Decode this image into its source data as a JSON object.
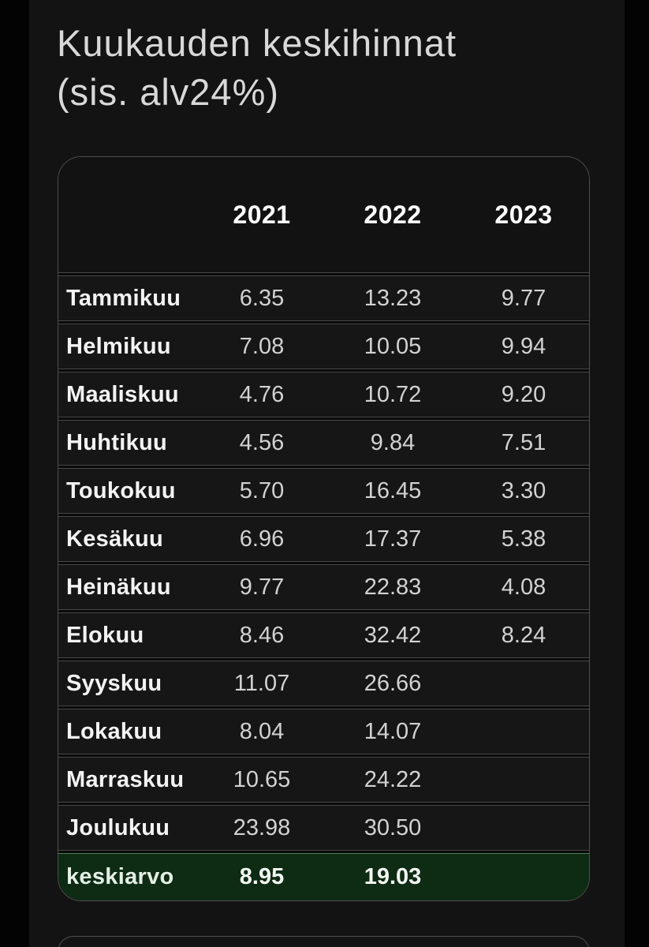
{
  "page": {
    "title_line1": "Kuukauden keskihinnat",
    "title_line2": "(sis. alv24%)"
  },
  "table": {
    "columns": [
      "2021",
      "2022",
      "2023"
    ],
    "rows": [
      {
        "label": "Tammikuu",
        "values": [
          "6.35",
          "13.23",
          "9.77"
        ]
      },
      {
        "label": "Helmikuu",
        "values": [
          "7.08",
          "10.05",
          "9.94"
        ]
      },
      {
        "label": "Maaliskuu",
        "values": [
          "4.76",
          "10.72",
          "9.20"
        ]
      },
      {
        "label": "Huhtikuu",
        "values": [
          "4.56",
          "9.84",
          "7.51"
        ]
      },
      {
        "label": "Toukokuu",
        "values": [
          "5.70",
          "16.45",
          "3.30"
        ]
      },
      {
        "label": "Kesäkuu",
        "values": [
          "6.96",
          "17.37",
          "5.38"
        ]
      },
      {
        "label": "Heinäkuu",
        "values": [
          "9.77",
          "22.83",
          "4.08"
        ]
      },
      {
        "label": "Elokuu",
        "values": [
          "8.46",
          "32.42",
          "8.24"
        ]
      },
      {
        "label": "Syyskuu",
        "values": [
          "11.07",
          "26.66",
          ""
        ]
      },
      {
        "label": "Lokakuu",
        "values": [
          "8.04",
          "14.07",
          ""
        ]
      },
      {
        "label": "Marraskuu",
        "values": [
          "10.65",
          "24.22",
          ""
        ]
      },
      {
        "label": "Joulukuu",
        "values": [
          "23.98",
          "30.50",
          ""
        ]
      }
    ],
    "footer": {
      "label": "keskiarvo",
      "values": [
        "8.95",
        "19.03",
        ""
      ]
    }
  },
  "colors": {
    "page_bg": "#131313",
    "title_color": "#d9d9d9",
    "card_border": "#4e4e4e",
    "row_border": "#474747",
    "highlight_bg": "#0e2b13",
    "highlight_border": "#507a56"
  }
}
